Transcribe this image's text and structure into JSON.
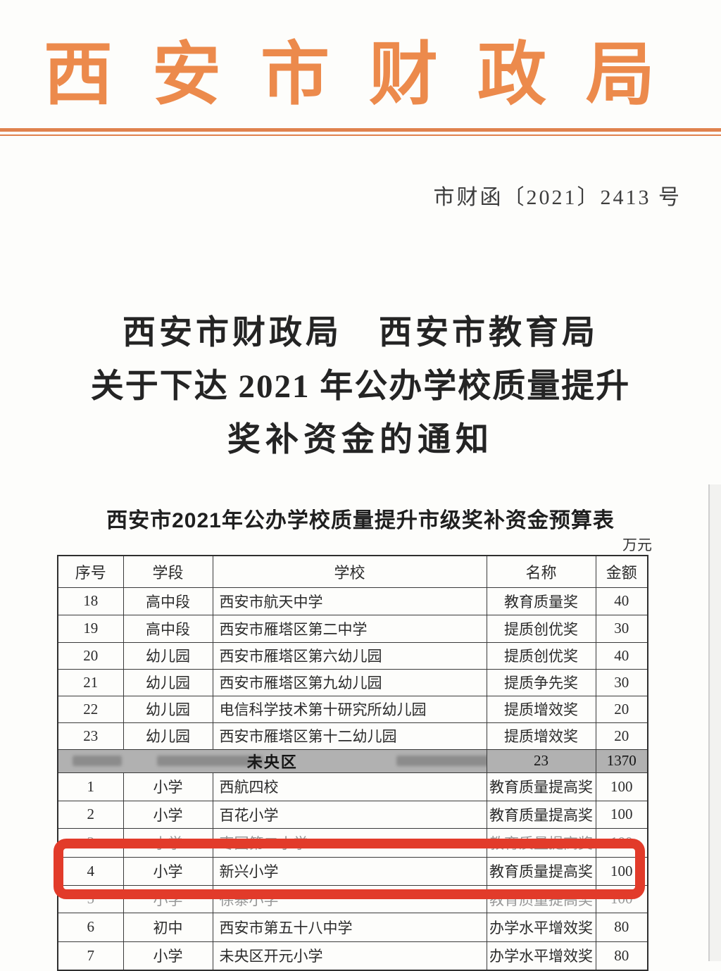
{
  "letterhead": {
    "title": "西安市财政局",
    "chars": [
      "西",
      "安",
      "市",
      "财",
      "政",
      "局"
    ],
    "color": "#ec8a4c",
    "rule_color": "#e0824e"
  },
  "doc_number": "市财函〔2021〕2413 号",
  "title": {
    "lines": [
      "西安市财政局　西安市教育局",
      "关于下达 2021 年公办学校质量提升",
      "奖补资金的通知"
    ]
  },
  "table": {
    "title": "西安市2021年公办学校质量提升市级奖补资金预算表",
    "unit_note": "万元",
    "columns": [
      "序号",
      "学段",
      "学校",
      "名称",
      "金额"
    ],
    "rows": [
      {
        "no": "18",
        "stage": "高中段",
        "school": "西安市航天中学",
        "award": "教育质量奖",
        "amount": "40"
      },
      {
        "no": "19",
        "stage": "高中段",
        "school": "西安市雁塔区第二中学",
        "award": "提质创优奖",
        "amount": "30"
      },
      {
        "no": "20",
        "stage": "幼儿园",
        "school": "西安市雁塔区第六幼儿园",
        "award": "提质创优奖",
        "amount": "40"
      },
      {
        "no": "21",
        "stage": "幼儿园",
        "school": "西安市雁塔区第九幼儿园",
        "award": "提质争先奖",
        "amount": "30"
      },
      {
        "no": "22",
        "stage": "幼儿园",
        "school": "电信科学技术第十研究所幼儿园",
        "award": "提质增效奖",
        "amount": "20"
      },
      {
        "no": "23",
        "stage": "幼儿园",
        "school": "西安市雁塔区第十二幼儿园",
        "award": "提质增效奖",
        "amount": "20"
      },
      {
        "type": "section",
        "label": "未央区",
        "count": "23",
        "amount": "1370"
      },
      {
        "no": "1",
        "stage": "小学",
        "school": "西航四校",
        "award": "教育质量提高奖",
        "amount": "100"
      },
      {
        "no": "2",
        "stage": "小学",
        "school": "百花小学",
        "award": "教育质量提高奖",
        "amount": "100"
      },
      {
        "no": "3",
        "stage": "小学",
        "school": "枣园第二小学",
        "award": "教育质量提高奖",
        "amount": "100",
        "muted": true
      },
      {
        "no": "4",
        "stage": "小学",
        "school": "新兴小学",
        "award": "教育质量提高奖",
        "amount": "100",
        "highlighted": true
      },
      {
        "no": "5",
        "stage": "小学",
        "school": "徐寨小学",
        "award": "教育质量提高奖",
        "amount": "100",
        "muted": true
      },
      {
        "no": "6",
        "stage": "初中",
        "school": "西安市第五十八中学",
        "award": "办学水平增效奖",
        "amount": "80"
      },
      {
        "no": "7",
        "stage": "小学",
        "school": "未央区开元小学",
        "award": "办学水平增效奖",
        "amount": "80"
      }
    ]
  },
  "highlight": {
    "color": "#e23b2a",
    "highlighted_row_no": "4"
  }
}
